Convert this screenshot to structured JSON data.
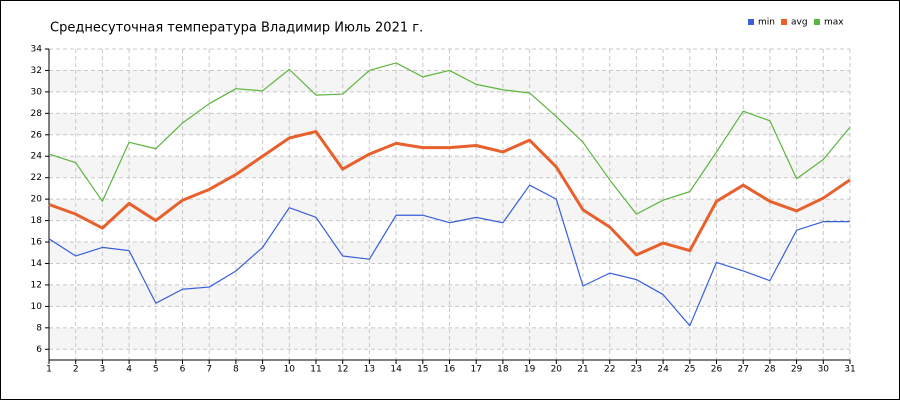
{
  "chart_data": {
    "type": "line",
    "title": "Среднесуточная температура Владимир  Июль 2021 г.",
    "x": [
      1,
      2,
      3,
      4,
      5,
      6,
      7,
      8,
      9,
      10,
      11,
      12,
      13,
      14,
      15,
      16,
      17,
      18,
      19,
      20,
      21,
      22,
      23,
      24,
      25,
      26,
      27,
      28,
      29,
      30,
      31
    ],
    "xlim": [
      1,
      31
    ],
    "xticks": [
      1,
      2,
      3,
      4,
      5,
      6,
      7,
      8,
      9,
      10,
      11,
      12,
      13,
      14,
      15,
      16,
      17,
      18,
      19,
      20,
      21,
      22,
      23,
      24,
      25,
      26,
      27,
      28,
      29,
      30,
      31
    ],
    "ylim": [
      5,
      34
    ],
    "yticks": [
      6,
      8,
      10,
      12,
      14,
      16,
      18,
      20,
      22,
      24,
      26,
      28,
      30,
      32,
      34
    ],
    "grid": true,
    "legend": "top-right",
    "series": [
      {
        "name": "min",
        "color": "#3a5fd9",
        "values": [
          16.3,
          14.7,
          15.5,
          15.2,
          10.3,
          11.6,
          11.8,
          13.3,
          15.5,
          19.2,
          18.3,
          14.7,
          14.4,
          18.5,
          18.5,
          17.8,
          18.3,
          17.8,
          21.3,
          20.0,
          11.9,
          13.1,
          12.5,
          11.1,
          8.2,
          14.1,
          13.3,
          12.4,
          17.1,
          17.9,
          17.9
        ]
      },
      {
        "name": "avg",
        "color": "#e8602c",
        "values": [
          19.5,
          18.6,
          17.3,
          19.6,
          18.0,
          19.9,
          20.9,
          22.3,
          24.0,
          25.7,
          26.3,
          22.8,
          24.2,
          25.2,
          24.8,
          24.8,
          25.0,
          24.4,
          25.5,
          23.0,
          19.0,
          17.4,
          14.8,
          15.9,
          15.2,
          19.8,
          21.3,
          19.8,
          18.9,
          20.1,
          21.8
        ]
      },
      {
        "name": "max",
        "color": "#5cb53e",
        "values": [
          24.2,
          23.4,
          19.8,
          25.3,
          24.7,
          27.1,
          28.9,
          30.3,
          30.1,
          32.1,
          29.7,
          29.8,
          32.0,
          32.7,
          31.4,
          32.0,
          30.7,
          30.2,
          29.9,
          27.7,
          25.3,
          21.8,
          18.6,
          19.9,
          20.7,
          24.4,
          28.2,
          27.3,
          21.9,
          23.7,
          26.7
        ]
      }
    ]
  }
}
